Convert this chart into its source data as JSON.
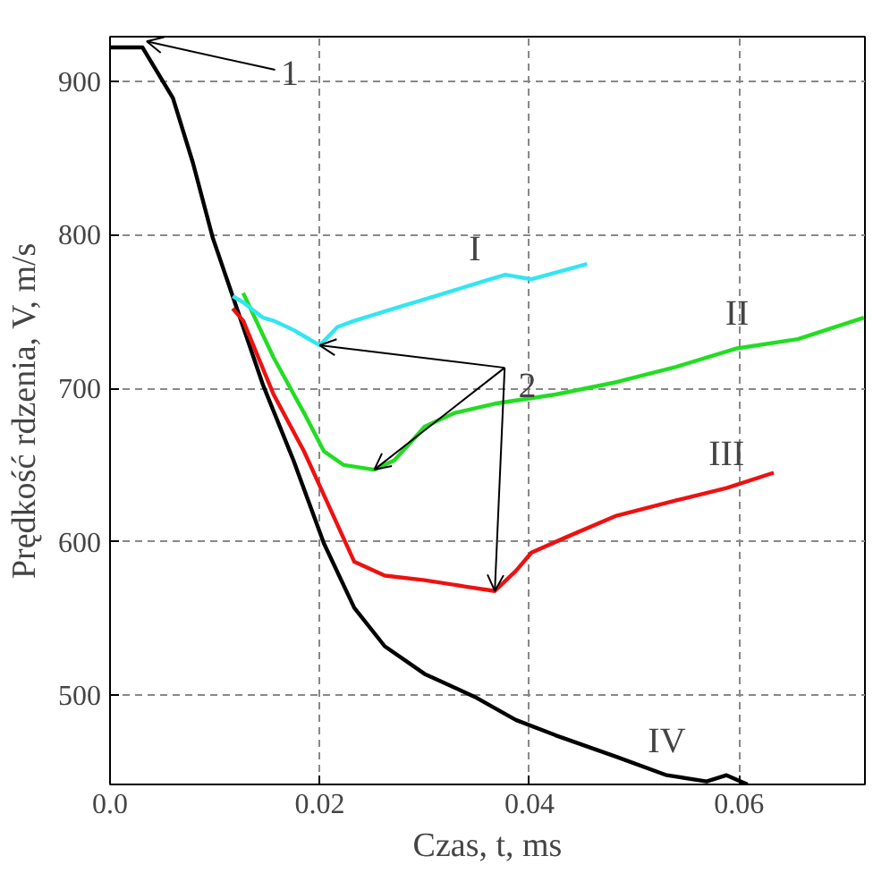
{
  "chart_data": {
    "type": "line",
    "xlabel": "Czas, t, ms",
    "ylabel": "Prędkość rdzenia, V, m/s",
    "xlim": [
      0,
      0.072
    ],
    "ylim": [
      442,
      929
    ],
    "xticks": [
      {
        "value": 0,
        "label": "0.0"
      },
      0.02,
      0.04,
      0.06
    ],
    "yticks": [
      500,
      600,
      700,
      800,
      900
    ],
    "grid": true,
    "line_style": "solid",
    "series": [
      {
        "color": "#33e6f0",
        "x": [
          0.0117,
          0.0127,
          0.0146,
          0.0156,
          0.0175,
          0.0185,
          0.02,
          0.0217,
          0.0233,
          0.0271,
          0.031,
          0.0348,
          0.0377,
          0.0402,
          0.0455
        ],
        "values": [
          760,
          756,
          746,
          744,
          738,
          734,
          728,
          740,
          744,
          752,
          760,
          768,
          774,
          771,
          781
        ]
      },
      {
        "color": "#22dd22",
        "x": [
          0.0127,
          0.0156,
          0.0185,
          0.0204,
          0.0223,
          0.0252,
          0.0271,
          0.0287,
          0.03,
          0.0329,
          0.0367,
          0.0425,
          0.0483,
          0.054,
          0.0598,
          0.0656,
          0.0719
        ],
        "values": [
          762,
          720,
          684,
          659,
          650,
          647,
          653,
          665,
          675,
          684,
          690,
          696,
          704,
          714,
          726,
          732,
          746
        ]
      },
      {
        "color": "#ee1111",
        "x": [
          0.0117,
          0.0127,
          0.0156,
          0.0185,
          0.0213,
          0.0233,
          0.0262,
          0.03,
          0.0338,
          0.0367,
          0.0387,
          0.0402,
          0.0435,
          0.0483,
          0.054,
          0.0588,
          0.0633
        ],
        "values": [
          752,
          744,
          696,
          659,
          617,
          587,
          578,
          575,
          571,
          568,
          581,
          593,
          603,
          617,
          627,
          635,
          645
        ]
      },
      {
        "color": "#000000",
        "x": [
          0,
          0.0031,
          0.006,
          0.0079,
          0.0098,
          0.0146,
          0.0175,
          0.0204,
          0.0233,
          0.0262,
          0.03,
          0.0348,
          0.0387,
          0.0425,
          0.0483,
          0.0531,
          0.0569,
          0.0588,
          0.0608
        ],
        "values": [
          922,
          922,
          889,
          847,
          798,
          702,
          653,
          599,
          557,
          532,
          514,
          499,
          484,
          474,
          460,
          448,
          444,
          448,
          442
        ]
      }
    ],
    "annotations": [
      {
        "text": "1",
        "x": 0.0035,
        "y": 922
      },
      {
        "text": "2",
        "x": 0.02,
        "y": 728
      },
      {
        "text": "I",
        "x": 0.0348,
        "y": 768
      },
      {
        "text": "II",
        "x": 0.0598,
        "y": 726
      },
      {
        "text": "III",
        "x": 0.0588,
        "y": 635
      },
      {
        "text": "IV",
        "x": 0.0531,
        "y": 448
      }
    ]
  }
}
